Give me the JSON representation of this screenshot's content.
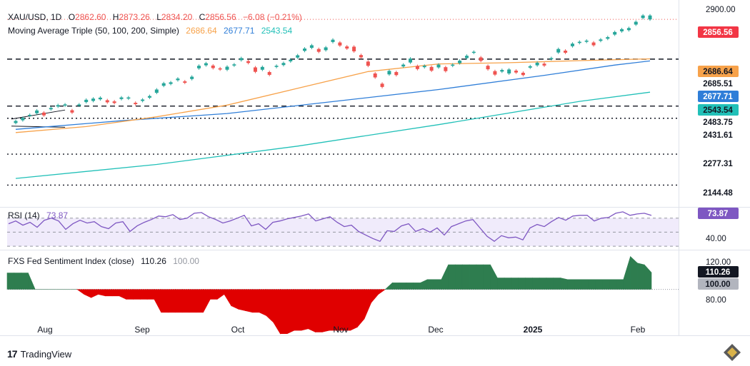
{
  "header": {
    "symbol": "XAU/USD, 1D",
    "o_label": "O",
    "o_value": "2862.60",
    "h_label": "H",
    "h_value": "2873.26",
    "l_label": "L",
    "l_value": "2834.20",
    "c_label": "C",
    "c_value": "2856.56",
    "change": "−6.08 (−0.21%)",
    "ma_label": "Moving Average Triple (50, 100, 200, Simple)",
    "ma50_value": "2686.64",
    "ma100_value": "2677.71",
    "ma200_value": "2543.54"
  },
  "rsi_header": {
    "label": "RSI (14)",
    "value": "73.87"
  },
  "fed_header": {
    "label": "FXS Fed Sentiment Index (close)",
    "value": "110.26",
    "baseline": "100.00"
  },
  "branding": {
    "logo": "17",
    "name": "TradingView"
  },
  "colors": {
    "up": "#26a69a",
    "down": "#ef5350",
    "ma50": "#f7a24a",
    "ma100": "#2f7ed8",
    "ma200": "#21c0b8",
    "rsi_line": "#7e57c2",
    "rsi_fill": "#f0ebfb",
    "fed_up": "#2e7d4f",
    "fed_down": "#e00000",
    "price_label": "#f23645",
    "ma50_label": "#f7a24a",
    "ma100_label": "#2f7ed8",
    "ma200_label": "#21c0b8",
    "level_label": "#131722",
    "rsi_label": "#7e57c2",
    "fed_label": "#131722",
    "baseline_label": "#b2b5be"
  },
  "chart_data": [
    {
      "type": "candlestick",
      "title": "XAU/USD, 1D",
      "x_ticks": [
        "Aug",
        "Sep",
        "Oct",
        "Nov",
        "Dec",
        "2025",
        "Feb"
      ],
      "y_ticks": [
        2900.0
      ],
      "ylim": [
        2060,
        2915
      ],
      "price_path": [
        [
          2411,
          2420
        ],
        [
          2423,
          2433
        ],
        [
          2443,
          2446
        ],
        [
          2453,
          2465
        ],
        [
          2444,
          2456
        ],
        [
          2470,
          2476
        ],
        [
          2482,
          2488
        ],
        [
          2486,
          2491
        ],
        [
          2456,
          2466
        ],
        [
          2486,
          2491
        ],
        [
          2501,
          2511
        ],
        [
          2506,
          2516
        ],
        [
          2513,
          2520
        ],
        [
          2500,
          2509
        ],
        [
          2497,
          2504
        ],
        [
          2514,
          2521
        ],
        [
          2516,
          2521
        ],
        [
          2492,
          2498
        ],
        [
          2506,
          2512
        ],
        [
          2520,
          2527
        ],
        [
          2541,
          2555
        ],
        [
          2571,
          2582
        ],
        [
          2579,
          2586
        ],
        [
          2595,
          2602
        ],
        [
          2584,
          2590
        ],
        [
          2600,
          2610
        ],
        [
          2646,
          2657
        ],
        [
          2659,
          2668
        ],
        [
          2647,
          2658
        ],
        [
          2641,
          2646
        ],
        [
          2640,
          2653
        ],
        [
          2658,
          2663
        ],
        [
          2681,
          2690
        ],
        [
          2669,
          2677
        ],
        [
          2631,
          2650
        ],
        [
          2640,
          2652
        ],
        [
          2618,
          2630
        ],
        [
          2652,
          2657
        ],
        [
          2660,
          2669
        ],
        [
          2676,
          2683
        ],
        [
          2692,
          2702
        ],
        [
          2721,
          2731
        ],
        [
          2734,
          2745
        ],
        [
          2717,
          2729
        ],
        [
          2724,
          2736
        ],
        [
          2759,
          2769
        ],
        [
          2744,
          2757
        ],
        [
          2731,
          2740
        ],
        [
          2719,
          2739
        ],
        [
          2693,
          2703
        ],
        [
          2657,
          2675
        ],
        [
          2607,
          2624
        ],
        [
          2566,
          2580
        ],
        [
          2620,
          2635
        ],
        [
          2617,
          2630
        ],
        [
          2654,
          2662
        ],
        [
          2671,
          2688
        ],
        [
          2643,
          2656
        ],
        [
          2651,
          2657
        ],
        [
          2636,
          2652
        ],
        [
          2650,
          2662
        ],
        [
          2634,
          2651
        ],
        [
          2657,
          2662
        ],
        [
          2668,
          2679
        ],
        [
          2690,
          2700
        ],
        [
          2713,
          2717
        ],
        [
          2678,
          2693
        ],
        [
          2642,
          2657
        ],
        [
          2619,
          2634
        ],
        [
          2632,
          2639
        ],
        [
          2624,
          2641
        ],
        [
          2628,
          2636
        ],
        [
          2617,
          2627
        ],
        [
          2649,
          2655
        ],
        [
          2659,
          2670
        ],
        [
          2658,
          2666
        ],
        [
          2686,
          2690
        ],
        [
          2714,
          2729
        ],
        [
          2713,
          2722
        ],
        [
          2741,
          2752
        ],
        [
          2755,
          2760
        ],
        [
          2760,
          2765
        ],
        [
          2745,
          2757
        ],
        [
          2764,
          2770
        ],
        [
          2773,
          2780
        ],
        [
          2791,
          2802
        ],
        [
          2805,
          2814
        ],
        [
          2810,
          2819
        ],
        [
          2834,
          2846
        ],
        [
          2862,
          2873
        ],
        [
          2856,
          2873
        ]
      ],
      "ma50": [
        [
          0,
          2370
        ],
        [
          10,
          2396
        ],
        [
          20,
          2438
        ],
        [
          30,
          2488
        ],
        [
          40,
          2560
        ],
        [
          50,
          2632
        ],
        [
          60,
          2665
        ],
        [
          70,
          2670
        ],
        [
          80,
          2679
        ],
        [
          90,
          2686.64
        ]
      ],
      "ma100": [
        [
          0,
          2384
        ],
        [
          15,
          2421
        ],
        [
          30,
          2452
        ],
        [
          45,
          2503
        ],
        [
          60,
          2555
        ],
        [
          75,
          2616
        ],
        [
          85,
          2660
        ],
        [
          90,
          2677.71
        ]
      ],
      "ma200": [
        [
          0,
          2173
        ],
        [
          20,
          2233
        ],
        [
          40,
          2312
        ],
        [
          60,
          2404
        ],
        [
          80,
          2504
        ],
        [
          90,
          2543.54
        ]
      ],
      "levels": [
        {
          "value": 2685.51,
          "label": "2685.51",
          "style": "dashed"
        },
        {
          "value": 2483.75,
          "label": "2483.75",
          "style": "dashed"
        },
        {
          "value": 2431.61,
          "label": "2431.61",
          "style": "dotted"
        },
        {
          "value": 2277.31,
          "label": "2277.31",
          "style": "dotted"
        },
        {
          "value": 2144.48,
          "label": "2144.48",
          "style": "dotted"
        }
      ],
      "last_price": {
        "value": 2856.56,
        "label": "2856.56"
      }
    },
    {
      "type": "line",
      "title": "RSI (14)",
      "y_ticks": [
        40.0
      ],
      "ylim": [
        25,
        85
      ],
      "overbought": 70,
      "oversold": 30,
      "midline": 50,
      "last_value": {
        "value": 73.87,
        "label": "73.87"
      },
      "values": [
        62,
        66,
        60,
        64,
        57,
        67,
        70,
        66,
        54,
        62,
        67,
        63,
        65,
        58,
        55,
        63,
        65,
        51,
        59,
        64,
        68,
        73,
        72,
        75,
        68,
        70,
        77,
        78,
        72,
        68,
        63,
        66,
        70,
        74,
        59,
        62,
        54,
        64,
        66,
        69,
        71,
        73,
        76,
        66,
        69,
        72,
        64,
        58,
        60,
        51,
        46,
        41,
        37,
        52,
        51,
        59,
        62,
        51,
        55,
        50,
        56,
        46,
        58,
        62,
        66,
        68,
        56,
        44,
        37,
        45,
        42,
        43,
        39,
        56,
        61,
        58,
        65,
        71,
        67,
        73,
        74,
        74,
        66,
        70,
        71,
        77,
        79,
        74,
        76,
        77,
        73.87
      ]
    },
    {
      "type": "area",
      "title": "FXS Fed Sentiment Index (close)",
      "y_ticks": [
        120.0,
        80.0
      ],
      "ylim": [
        72,
        122
      ],
      "baseline": {
        "value": 100,
        "label": "100.00"
      },
      "last_value": {
        "value": 110.26,
        "label": "110.26"
      },
      "values": [
        110,
        110,
        110,
        110,
        100,
        100,
        100,
        100,
        100,
        100,
        100,
        97,
        95,
        97,
        96,
        96,
        96,
        94,
        94,
        94,
        94,
        94,
        86,
        86,
        86,
        86,
        86,
        86,
        86,
        94,
        94,
        97,
        90,
        88,
        87,
        86,
        86,
        84,
        80,
        73,
        73,
        75,
        75,
        76,
        74,
        74,
        75,
        75,
        75,
        75,
        77,
        82,
        92,
        97,
        100,
        104,
        104,
        104,
        104,
        104,
        106,
        106,
        106,
        115,
        115,
        115,
        115,
        115,
        115,
        115,
        107,
        107,
        107,
        107,
        107,
        107,
        107,
        107,
        107,
        107,
        106,
        106,
        106,
        106,
        106,
        106,
        106,
        106,
        106,
        120,
        116,
        115,
        110.26
      ]
    }
  ]
}
